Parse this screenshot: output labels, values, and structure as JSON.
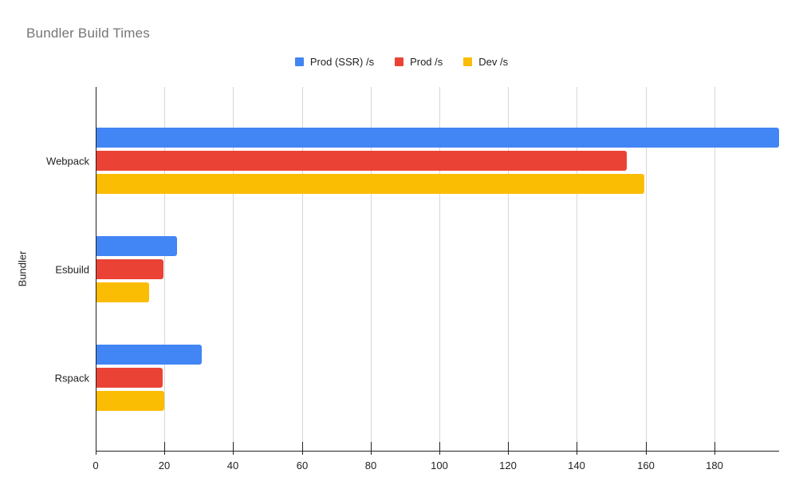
{
  "title": "Bundler Build Times",
  "chart_data": {
    "type": "bar",
    "orientation": "horizontal",
    "title": "Bundler Build Times",
    "xlabel": "",
    "ylabel": "Bundler",
    "categories": [
      "Webpack",
      "Esbuild",
      "Rspack"
    ],
    "series": [
      {
        "name": "Prod (SSR) /s",
        "color": "#4285F4",
        "values": [
          198.6,
          23.4,
          30.6
        ]
      },
      {
        "name": "Prod /s",
        "color": "#EA4335",
        "values": [
          154.3,
          19.5,
          19.3
        ]
      },
      {
        "name": "Dev /s",
        "color": "#FBBC04",
        "values": [
          159.4,
          15.3,
          19.7
        ]
      }
    ],
    "xlim": [
      0,
      198.6
    ],
    "x_ticks": [
      0,
      20,
      40,
      60,
      80,
      100,
      120,
      140,
      160,
      180
    ],
    "grid": true,
    "legend_position": "top",
    "background_color": "#ffffff",
    "title_color": "#757575",
    "axis_text_color": "#222222",
    "gridline_color": "#d6d6d6",
    "axis_line_color": "#212121"
  }
}
